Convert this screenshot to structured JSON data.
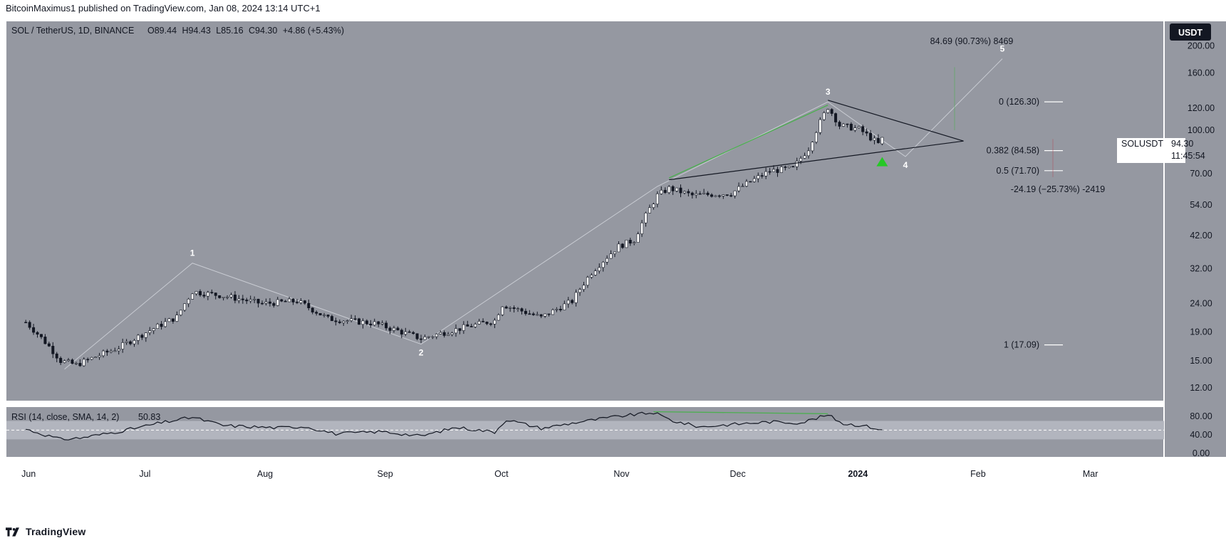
{
  "header": {
    "published_by": "BitcoinMaximus1 published on TradingView.com, Jan 08, 2024 13:14 UTC+1"
  },
  "footer": {
    "brand": "TradingView"
  },
  "colors": {
    "pane_bg": "#9598a1",
    "rsi_band": "#b2b5be",
    "up_candle": "#ffffff",
    "down_candle": "#131722",
    "trendline": "#131722",
    "divergence": "#4caf50",
    "wave_path": "#c9ccd3",
    "arrow": "#26c826"
  },
  "chart_data": [
    {
      "type": "candlestick",
      "symbol_legend": {
        "symbol": "SOL / TetherUS, 1D, BINANCE",
        "open_label": "O",
        "open": "89.44",
        "high_label": "H",
        "high": "94.43",
        "low_label": "L",
        "low": "85.16",
        "close_label": "C",
        "close": "94.30",
        "change": "+4.86 (+5.43%)"
      },
      "scale": "log",
      "currency": "USDT",
      "y_ticks": [
        "200.00",
        "160.00",
        "120.00",
        "100.00",
        "70.00",
        "54.00",
        "42.00",
        "32.00",
        "24.00",
        "19.00",
        "15.00",
        "12.00"
      ],
      "ylim": [
        10.8,
        245
      ],
      "x_ticks": [
        "Jun",
        "Jul",
        "Aug",
        "Sep",
        "Oct",
        "Nov",
        "Dec",
        "2024",
        "Feb",
        "Mar"
      ],
      "price_tag": {
        "symbol": "SOLUSDT",
        "price": "94.30",
        "countdown": "11:45:54"
      },
      "anchors": [
        {
          "date": "2023-06-01",
          "close": 20.6
        },
        {
          "date": "2023-06-10",
          "close": 15.0
        },
        {
          "date": "2023-06-14",
          "close": 14.5
        },
        {
          "date": "2023-06-25",
          "close": 16.7
        },
        {
          "date": "2023-07-10",
          "close": 21.5
        },
        {
          "date": "2023-07-14",
          "close": 26.5
        },
        {
          "date": "2023-07-22",
          "close": 25.6
        },
        {
          "date": "2023-08-01",
          "close": 24.0
        },
        {
          "date": "2023-08-10",
          "close": 24.5
        },
        {
          "date": "2023-08-18",
          "close": 21.2
        },
        {
          "date": "2023-08-30",
          "close": 20.4
        },
        {
          "date": "2023-09-11",
          "close": 18.0
        },
        {
          "date": "2023-09-20",
          "close": 19.4
        },
        {
          "date": "2023-09-30",
          "close": 20.9
        },
        {
          "date": "2023-10-02",
          "close": 23.8
        },
        {
          "date": "2023-10-12",
          "close": 21.4
        },
        {
          "date": "2023-10-20",
          "close": 24.5
        },
        {
          "date": "2023-10-25",
          "close": 31.0
        },
        {
          "date": "2023-11-01",
          "close": 38.5
        },
        {
          "date": "2023-11-05",
          "close": 40.5
        },
        {
          "date": "2023-11-11",
          "close": 58.5
        },
        {
          "date": "2023-11-14",
          "close": 62.0
        },
        {
          "date": "2023-11-20",
          "close": 58.5
        },
        {
          "date": "2023-11-30",
          "close": 59.5
        },
        {
          "date": "2023-12-10",
          "close": 71.5
        },
        {
          "date": "2023-12-16",
          "close": 73.0
        },
        {
          "date": "2023-12-20",
          "close": 86.0
        },
        {
          "date": "2023-12-25",
          "close": 121.0
        },
        {
          "date": "2023-12-28",
          "close": 104.0
        },
        {
          "date": "2024-01-02",
          "close": 101.0
        },
        {
          "date": "2024-01-07",
          "close": 89.4
        },
        {
          "date": "2024-01-08",
          "close": 94.3
        }
      ],
      "wave_labels": [
        {
          "label": "1",
          "date": "2023-07-14",
          "price": 33.5
        },
        {
          "label": "2",
          "date": "2023-09-11",
          "price": 17.2
        },
        {
          "label": "3",
          "date": "2023-12-25",
          "price": 126.3
        },
        {
          "label": "4",
          "date": "2024-01-14",
          "price": 80.5
        },
        {
          "label": "5",
          "date": "2024-02-08",
          "price": 180
        }
      ],
      "fib_levels": [
        {
          "label": "0 (126.30)",
          "price": 126.3
        },
        {
          "label": "0.382 (84.58)",
          "price": 84.58
        },
        {
          "label": "0.5 (71.70)",
          "price": 71.7
        },
        {
          "label": "1 (17.09)",
          "price": 17.09
        }
      ],
      "measure_up": "84.69 (90.73%) 8469",
      "measure_down": "-24.19 (−25.73%) -2419"
    },
    {
      "type": "line",
      "title": "RSI (14, close, SMA, 14, 2)",
      "last_value": "50.83",
      "y_ticks": [
        "80.00",
        "40.00",
        "0.00"
      ],
      "ylim": [
        -8,
        100
      ],
      "band": [
        30,
        70
      ],
      "midline": 50,
      "anchors": [
        {
          "date": "2023-06-01",
          "value": 52
        },
        {
          "date": "2023-06-10",
          "value": 30
        },
        {
          "date": "2023-06-15",
          "value": 33
        },
        {
          "date": "2023-06-25",
          "value": 47
        },
        {
          "date": "2023-07-06",
          "value": 66
        },
        {
          "date": "2023-07-14",
          "value": 78
        },
        {
          "date": "2023-07-22",
          "value": 60
        },
        {
          "date": "2023-08-05",
          "value": 55
        },
        {
          "date": "2023-08-12",
          "value": 58
        },
        {
          "date": "2023-08-20",
          "value": 42
        },
        {
          "date": "2023-09-01",
          "value": 47
        },
        {
          "date": "2023-09-11",
          "value": 37
        },
        {
          "date": "2023-09-20",
          "value": 56
        },
        {
          "date": "2023-09-30",
          "value": 46
        },
        {
          "date": "2023-10-03",
          "value": 73
        },
        {
          "date": "2023-10-12",
          "value": 54
        },
        {
          "date": "2023-10-22",
          "value": 68
        },
        {
          "date": "2023-11-01",
          "value": 80
        },
        {
          "date": "2023-11-10",
          "value": 88
        },
        {
          "date": "2023-11-15",
          "value": 70
        },
        {
          "date": "2023-11-22",
          "value": 57
        },
        {
          "date": "2023-12-01",
          "value": 63
        },
        {
          "date": "2023-12-10",
          "value": 68
        },
        {
          "date": "2023-12-18",
          "value": 66
        },
        {
          "date": "2023-12-25",
          "value": 83
        },
        {
          "date": "2023-12-29",
          "value": 64
        },
        {
          "date": "2024-01-03",
          "value": 60
        },
        {
          "date": "2024-01-08",
          "value": 50.8
        }
      ]
    }
  ]
}
